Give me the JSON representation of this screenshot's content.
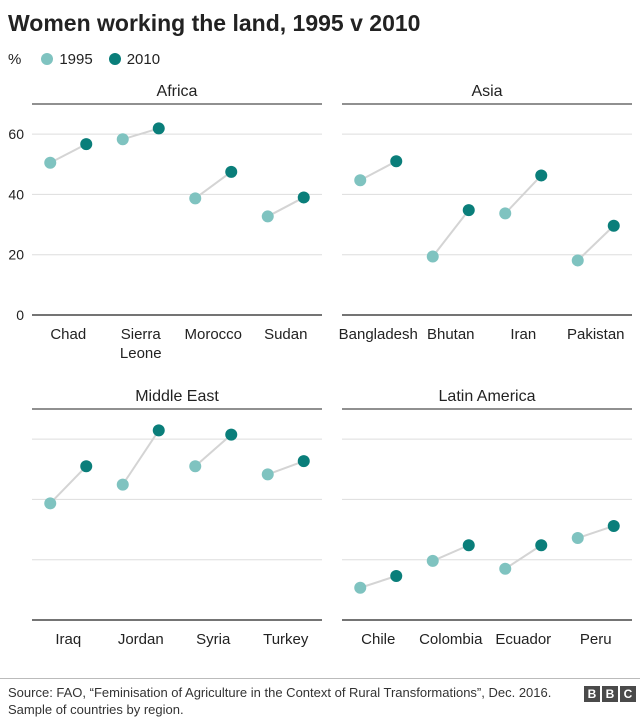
{
  "title": "Women working the land, 1995 v 2010",
  "legend": {
    "unit": "%",
    "items": [
      {
        "label": "1995",
        "color": "#7fc3c0"
      },
      {
        "label": "2010",
        "color": "#0a7e7a"
      }
    ]
  },
  "colors": {
    "connector": "#d4d4d4",
    "grid": "#dddddd",
    "axis": "#222222"
  },
  "chart_data": [
    {
      "type": "scatter",
      "title": "Africa",
      "categories": [
        "Chad",
        "Sierra\nLeone",
        "Morocco",
        "Sudan"
      ],
      "series": [
        {
          "name": "1995",
          "values": [
            50.5,
            58.3,
            38.7,
            32.7
          ]
        },
        {
          "name": "2010",
          "values": [
            56.7,
            61.9,
            47.5,
            39.0
          ]
        }
      ],
      "ylim": [
        0,
        70
      ],
      "yticks": [
        0,
        20,
        40,
        60
      ],
      "grid": true
    },
    {
      "type": "scatter",
      "title": "Asia",
      "categories": [
        "Bangladesh",
        "Bhutan",
        "Iran",
        "Pakistan"
      ],
      "series": [
        {
          "name": "1995",
          "values": [
            44.7,
            19.4,
            33.7,
            18.1
          ]
        },
        {
          "name": "2010",
          "values": [
            51.0,
            34.8,
            46.3,
            29.6
          ]
        }
      ],
      "ylim": [
        0,
        70
      ],
      "yticks": [
        0,
        20,
        40,
        60
      ],
      "grid": true
    },
    {
      "type": "scatter",
      "title": "Middle East",
      "categories": [
        "Iraq",
        "Jordan",
        "Syria",
        "Turkey"
      ],
      "series": [
        {
          "name": "1995",
          "values": [
            38.7,
            44.9,
            51.0,
            48.3
          ]
        },
        {
          "name": "2010",
          "values": [
            51.0,
            62.9,
            61.5,
            52.7
          ]
        }
      ],
      "ylim": [
        0,
        70
      ],
      "yticks": [
        0,
        20,
        40,
        60
      ],
      "grid": true
    },
    {
      "type": "scatter",
      "title": "Latin America",
      "categories": [
        "Chile",
        "Colombia",
        "Ecuador",
        "Peru"
      ],
      "series": [
        {
          "name": "1995",
          "values": [
            10.7,
            19.6,
            17.0,
            27.2
          ]
        },
        {
          "name": "2010",
          "values": [
            14.6,
            24.8,
            24.8,
            31.2
          ]
        }
      ],
      "ylim": [
        0,
        70
      ],
      "yticks": [
        0,
        20,
        40,
        60
      ],
      "grid": true
    }
  ],
  "source": "Source: FAO, “Feminisation of Agriculture in the Context of Rural Transformations”, Dec. 2016. Sample of countries by region.",
  "logo": [
    "B",
    "B",
    "C"
  ]
}
